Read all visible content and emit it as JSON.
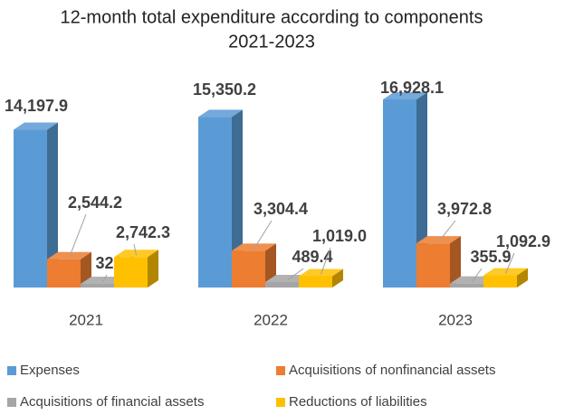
{
  "chart_data": {
    "type": "bar3d",
    "title": "12-month total expenditure according to components",
    "subtitle": "2021-2023",
    "categories": [
      "2021",
      "2022",
      "2023"
    ],
    "series": [
      {
        "name": "Expenses",
        "color": "#5b9bd5",
        "values": [
          14197.9,
          15350.2,
          16928.1
        ],
        "value_labels": [
          "14,197.9",
          "15,350.2",
          "16,928.1"
        ]
      },
      {
        "name": "Acquisitions of nonfinancial assets",
        "color": "#ed7d31",
        "values": [
          2544.2,
          3304.4,
          3972.8
        ],
        "value_labels": [
          "2,544.2",
          "3,304.4",
          "3,972.8"
        ]
      },
      {
        "name": "Acquisitions of financial assets",
        "color": "#a5a5a5",
        "values": [
          323.2,
          489.4,
          355.9
        ]
      },
      {
        "name": "Reductions of liabilities",
        "color": "#ffc000",
        "values": [
          2742.3,
          1019.0,
          1092.9
        ],
        "value_labels": [
          "2,742.3",
          "1,019.0",
          "1,092.9"
        ]
      }
    ],
    "legend": "bottom"
  }
}
